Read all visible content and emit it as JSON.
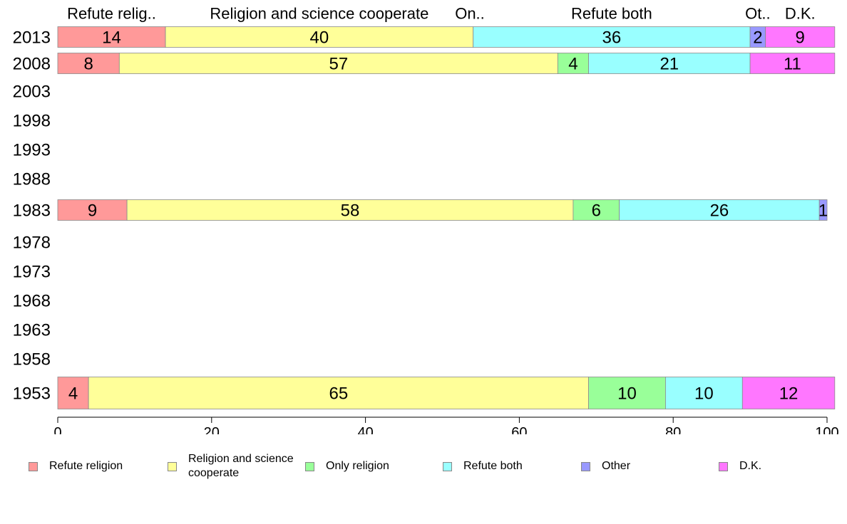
{
  "chart_data": {
    "type": "bar",
    "orientation": "horizontal",
    "stacked": true,
    "title": "",
    "xlabel": "",
    "ylabel": "",
    "xlim": [
      0,
      100
    ],
    "x_ticks": [
      0,
      20,
      40,
      60,
      80,
      100
    ],
    "x_tick_labels": [
      "0",
      "20",
      "40",
      "60",
      "80",
      "100"
    ],
    "categories": [
      "2013",
      "2008",
      "2003",
      "1998",
      "1993",
      "1988",
      "1983",
      "1978",
      "1973",
      "1968",
      "1963",
      "1958",
      "1953"
    ],
    "series": [
      {
        "name": "Refute religion",
        "short_label": "Refute relig..",
        "color": "#ff9999",
        "values": [
          14,
          8,
          null,
          null,
          null,
          null,
          9,
          null,
          null,
          null,
          null,
          null,
          4
        ],
        "labels": [
          "14",
          "8",
          "",
          "",
          "",
          "",
          "9",
          "",
          "",
          "",
          "",
          "",
          "4"
        ]
      },
      {
        "name": "Religion and science cooperate",
        "short_label": "Religion and science cooperate",
        "color": "#ffff99",
        "values": [
          40,
          57,
          null,
          null,
          null,
          null,
          58,
          null,
          null,
          null,
          null,
          null,
          65
        ],
        "labels": [
          "40",
          "57",
          "",
          "",
          "",
          "",
          "58",
          "",
          "",
          "",
          "",
          "",
          "65"
        ]
      },
      {
        "name": "Only religion",
        "short_label": "On..",
        "color": "#99ff99",
        "values": [
          0,
          4,
          null,
          null,
          null,
          null,
          6,
          null,
          null,
          null,
          null,
          null,
          10
        ],
        "labels": [
          "",
          "4",
          "",
          "",
          "",
          "",
          "6",
          "",
          "",
          "",
          "",
          "",
          "10"
        ]
      },
      {
        "name": "Refute both",
        "short_label": "Refute both",
        "color": "#99ffff",
        "values": [
          36,
          21,
          null,
          null,
          null,
          null,
          26,
          null,
          null,
          null,
          null,
          null,
          10
        ],
        "labels": [
          "36",
          "21",
          "",
          "",
          "",
          "",
          "26",
          "",
          "",
          "",
          "",
          "",
          "10"
        ]
      },
      {
        "name": "Other",
        "short_label": "Ot..",
        "color": "#9999ff",
        "values": [
          2,
          0,
          null,
          null,
          null,
          null,
          1,
          null,
          null,
          null,
          null,
          null,
          0
        ],
        "labels": [
          "2",
          "",
          "",
          "",
          "",
          "",
          "1",
          "",
          "",
          "",
          "",
          "",
          ""
        ]
      },
      {
        "name": "D.K.",
        "short_label": "D.K.",
        "color": "#ff77ff",
        "values": [
          9,
          11,
          null,
          null,
          null,
          null,
          0,
          null,
          null,
          null,
          null,
          null,
          12
        ],
        "labels": [
          "9",
          "11",
          "",
          "",
          "",
          "",
          "",
          "",
          "",
          "",
          "",
          "",
          "12"
        ]
      }
    ],
    "legend_position": "bottom"
  },
  "legend": {
    "items": [
      {
        "label": "Refute religion",
        "color": "#ff9999"
      },
      {
        "label": "Religion and science cooperate",
        "color": "#ffff99"
      },
      {
        "label": "Only religion",
        "color": "#99ff99"
      },
      {
        "label": "Refute both",
        "color": "#99ffff"
      },
      {
        "label": "Other",
        "color": "#9999ff"
      },
      {
        "label": "D.K.",
        "color": "#ff77ff"
      }
    ]
  }
}
